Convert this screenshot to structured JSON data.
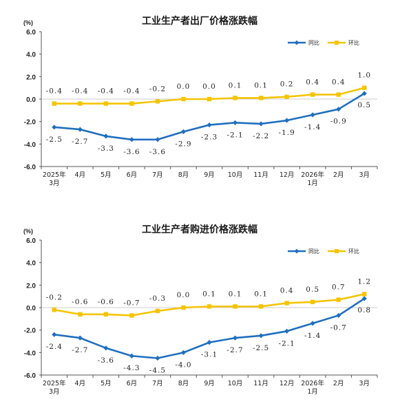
{
  "colors": {
    "yoy": "#1f6fbf",
    "mom": "#f5c400",
    "axis": "#555555"
  },
  "chart_data": [
    {
      "type": "line",
      "title": "工业生产者出厂价格涨跌幅",
      "unit": "(%)",
      "y_ticks": [
        "6.0",
        "4.0",
        "2.0",
        "0.0",
        "-2.0",
        "-4.0",
        "-6.0"
      ],
      "ylim": [
        -6,
        6
      ],
      "categories": [
        "2025年3月",
        "4月",
        "5月",
        "6月",
        "7月",
        "8月",
        "9月",
        "10月",
        "11月",
        "12月",
        "2026年1月",
        "2月",
        "3月"
      ],
      "x_tick_lines": [
        [
          "2025年",
          "3月"
        ],
        [
          "4月"
        ],
        [
          "5月"
        ],
        [
          "6月"
        ],
        [
          "7月"
        ],
        [
          "8月"
        ],
        [
          "9月"
        ],
        [
          "10月"
        ],
        [
          "11月"
        ],
        [
          "12月"
        ],
        [
          "2026年",
          "1月"
        ],
        [
          "2月"
        ],
        [
          "3月"
        ]
      ],
      "legend": "top-right",
      "series": [
        {
          "name": "同比",
          "values": [
            -2.5,
            -2.7,
            -3.3,
            -3.6,
            -3.6,
            -2.9,
            -2.3,
            -2.1,
            -2.2,
            -1.9,
            -1.4,
            -0.9,
            0.5
          ],
          "labels": [
            "-2.5",
            "-2.7",
            "-3.3",
            "-3.6",
            "-3.6",
            "-2.9",
            "-2.3",
            "-2.1",
            "-2.2",
            "-1.9",
            "-1.4",
            "-0.9",
            "0.5"
          ]
        },
        {
          "name": "环比",
          "values": [
            -0.4,
            -0.4,
            -0.4,
            -0.4,
            -0.2,
            0.0,
            0.0,
            0.1,
            0.1,
            0.2,
            0.4,
            0.4,
            1.0
          ],
          "labels": [
            "-0.4",
            "-0.4",
            "-0.4",
            "-0.4",
            "-0.2",
            "0.0",
            "0.0",
            "0.1",
            "0.1",
            "0.2",
            "0.4",
            "0.4",
            "1.0"
          ]
        }
      ]
    },
    {
      "type": "line",
      "title": "工业生产者购进价格涨跌幅",
      "unit": "(%)",
      "y_ticks": [
        "6.0",
        "4.0",
        "2.0",
        "0.0",
        "-2.0",
        "-4.0",
        "-6.0"
      ],
      "ylim": [
        -6,
        6
      ],
      "categories": [
        "2025年3月",
        "4月",
        "5月",
        "6月",
        "7月",
        "8月",
        "9月",
        "10月",
        "11月",
        "12月",
        "2026年1月",
        "2月",
        "3月"
      ],
      "x_tick_lines": [
        [
          "2025年",
          "3月"
        ],
        [
          "4月"
        ],
        [
          "5月"
        ],
        [
          "6月"
        ],
        [
          "7月"
        ],
        [
          "8月"
        ],
        [
          "9月"
        ],
        [
          "10月"
        ],
        [
          "11月"
        ],
        [
          "12月"
        ],
        [
          "2026年",
          "1月"
        ],
        [
          "2月"
        ],
        [
          "3月"
        ]
      ],
      "legend": "top-right",
      "series": [
        {
          "name": "同比",
          "values": [
            -2.4,
            -2.7,
            -3.6,
            -4.3,
            -4.5,
            -4.0,
            -3.1,
            -2.7,
            -2.5,
            -2.1,
            -1.4,
            -0.7,
            0.8
          ],
          "labels": [
            "-2.4",
            "-2.7",
            "-3.6",
            "-4.3",
            "-4.5",
            "-4.0",
            "-3.1",
            "-2.7",
            "-2.5",
            "-2.1",
            "-1.4",
            "-0.7",
            "0.8"
          ]
        },
        {
          "name": "环比",
          "values": [
            -0.2,
            -0.6,
            -0.6,
            -0.7,
            -0.3,
            0.0,
            0.1,
            0.1,
            0.1,
            0.4,
            0.5,
            0.7,
            1.2
          ],
          "labels": [
            "-0.2",
            "-0.6",
            "-0.6",
            "-0.7",
            "-0.3",
            "0.0",
            "0.1",
            "0.1",
            "0.1",
            "0.4",
            "0.5",
            "0.7",
            "1.2"
          ]
        }
      ]
    }
  ]
}
